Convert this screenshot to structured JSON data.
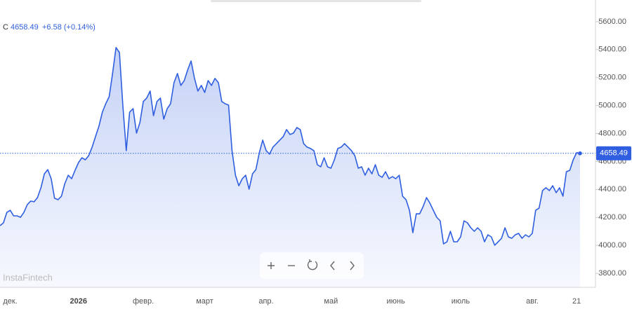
{
  "chart_data": {
    "type": "line",
    "symbol": "C",
    "change": "+6.58 (+0.14%)",
    "watermark": "InstaFintech",
    "color": "#2f5fe0",
    "ylim": [
      3700,
      5755
    ],
    "yticks": [
      {
        "value": 3800,
        "label": "3800.00"
      },
      {
        "value": 4000,
        "label": "4000.00"
      },
      {
        "value": 4200,
        "label": "4200.00"
      },
      {
        "value": 4400,
        "label": "4400.00"
      },
      {
        "value": 4600,
        "label": "4600.00"
      },
      {
        "value": 4800,
        "label": "4800.00"
      },
      {
        "value": 5000,
        "label": "5000.00"
      },
      {
        "value": 5200,
        "label": "5200.00"
      },
      {
        "value": 5400,
        "label": "5400.00"
      },
      {
        "value": 5600,
        "label": "5600.00"
      }
    ],
    "categories": [
      null,
      null,
      null,
      "дек.",
      null,
      null,
      null,
      null,
      null,
      null,
      null,
      null,
      null,
      null,
      null,
      null,
      null,
      null,
      null,
      null,
      null,
      null,
      null,
      "2026",
      null,
      null,
      null,
      null,
      null,
      null,
      null,
      null,
      null,
      null,
      null,
      null,
      null,
      null,
      null,
      null,
      null,
      null,
      "февр.",
      null,
      null,
      null,
      null,
      null,
      null,
      null,
      null,
      null,
      null,
      null,
      null,
      null,
      null,
      null,
      null,
      null,
      "март",
      null,
      null,
      null,
      null,
      null,
      null,
      null,
      null,
      null,
      null,
      null,
      null,
      null,
      null,
      null,
      null,
      null,
      "апр.",
      null,
      null,
      null,
      null,
      null,
      null,
      null,
      null,
      null,
      null,
      null,
      null,
      null,
      null,
      null,
      null,
      null,
      null,
      "май",
      null,
      null,
      null,
      null,
      null,
      null,
      null,
      null,
      null,
      null,
      null,
      null,
      null,
      null,
      null,
      null,
      null,
      null,
      "июнь",
      null,
      null,
      null,
      null,
      null,
      null,
      null,
      null,
      null,
      null,
      null,
      null,
      null,
      null,
      null,
      null,
      null,
      null,
      "июль",
      null,
      null,
      null,
      null,
      null,
      null,
      null,
      null,
      null,
      null,
      null,
      null,
      null,
      null,
      null,
      null,
      null,
      null,
      null,
      null,
      "авг.",
      null,
      null,
      null,
      null,
      null,
      null,
      null,
      null,
      null,
      null,
      null,
      null,
      "21",
      null
    ],
    "values": [
      4141,
      4161,
      4236,
      4251,
      4211,
      4211,
      4201,
      4236,
      4292,
      4317,
      4312,
      4342,
      4412,
      4512,
      4542,
      4477,
      4337,
      4327,
      4352,
      4442,
      4502,
      4477,
      4537,
      4592,
      4627,
      4612,
      4642,
      4703,
      4778,
      4853,
      4953,
      5013,
      5064,
      5229,
      5415,
      5379,
      5003,
      4678,
      4953,
      4978,
      4803,
      4878,
      5029,
      5054,
      5104,
      4928,
      5029,
      5054,
      4903,
      4978,
      5013,
      5164,
      5229,
      5144,
      5179,
      5254,
      5319,
      5194,
      5104,
      5144,
      5094,
      5179,
      5144,
      5194,
      5164,
      5029,
      5013,
      5003,
      4678,
      4502,
      4427,
      4477,
      4502,
      4402,
      4512,
      4542,
      4663,
      4753,
      4678,
      4653,
      4703,
      4728,
      4753,
      4778,
      4828,
      4793,
      4803,
      4843,
      4828,
      4728,
      4703,
      4693,
      4678,
      4577,
      4562,
      4627,
      4562,
      4552,
      4612,
      4693,
      4703,
      4728,
      4703,
      4678,
      4642,
      4552,
      4562,
      4502,
      4552,
      4512,
      4577,
      4502,
      4487,
      4527,
      4477,
      4492,
      4477,
      4502,
      4352,
      4327,
      4251,
      4091,
      4226,
      4226,
      4277,
      4342,
      4302,
      4251,
      4201,
      4176,
      4011,
      4026,
      4101,
      4026,
      4026,
      4061,
      4176,
      4161,
      4126,
      4101,
      4126,
      4101,
      4026,
      4076,
      4061,
      4001,
      4026,
      4051,
      4126,
      4061,
      4051,
      4076,
      4086,
      4051,
      4076,
      4061,
      4086,
      4251,
      4267,
      4392,
      4412,
      4392,
      4427,
      4377,
      4412,
      4352,
      4527,
      4537,
      4612,
      4663,
      4658.49
    ]
  }
}
